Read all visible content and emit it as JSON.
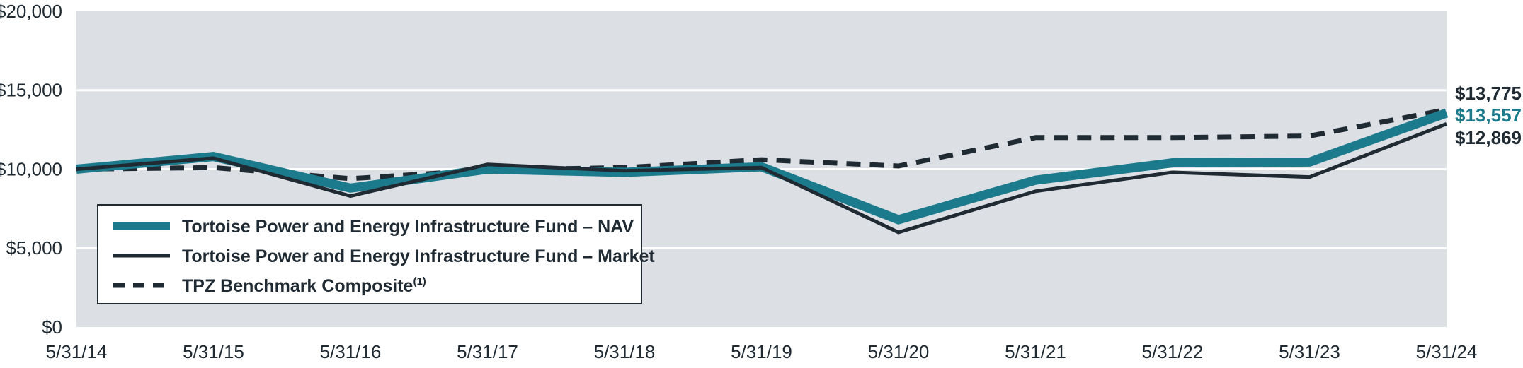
{
  "chart_data": {
    "type": "line",
    "title": "",
    "xlabel": "",
    "ylabel": "",
    "categories": [
      "5/31/14",
      "5/31/15",
      "5/31/16",
      "5/31/17",
      "5/31/18",
      "5/31/19",
      "5/31/20",
      "5/31/21",
      "5/31/22",
      "5/31/23",
      "5/31/24"
    ],
    "ylim": [
      0,
      20000
    ],
    "yticks": [
      0,
      5000,
      10000,
      15000,
      20000
    ],
    "ytick_labels": [
      "$0",
      "$5,000",
      "$10,000",
      "$15,000",
      "$20,000"
    ],
    "grid": true,
    "legend_position": "bottom-left",
    "series": [
      {
        "name": "Tortoise Power and Energy Infrastructure Fund – NAV",
        "values": [
          10000,
          10800,
          8800,
          10000,
          9800,
          10150,
          6800,
          9300,
          10400,
          10450,
          13557
        ],
        "end_label": "$13,557",
        "color": "#1b7a8c",
        "style": "solid-thick"
      },
      {
        "name": "Tortoise Power and Energy Infrastructure Fund – Market",
        "values": [
          10000,
          10700,
          8300,
          10300,
          9900,
          10100,
          6000,
          8600,
          9800,
          9500,
          12869
        ],
        "end_label": "$12,869",
        "color": "#1f2a33",
        "style": "solid"
      },
      {
        "name": "TPZ Benchmark Composite",
        "name_superscript": "(1)",
        "values": [
          10000,
          10100,
          9400,
          9950,
          10100,
          10600,
          10200,
          12000,
          12000,
          12100,
          13775
        ],
        "end_label": "$13,775",
        "color": "#1f2a33",
        "style": "dashed"
      }
    ]
  },
  "colors": {
    "plot_background": "#dcdfe3",
    "gridline": "#ffffff",
    "legend_background": "#ffffff",
    "legend_border": "#1f2a33"
  }
}
